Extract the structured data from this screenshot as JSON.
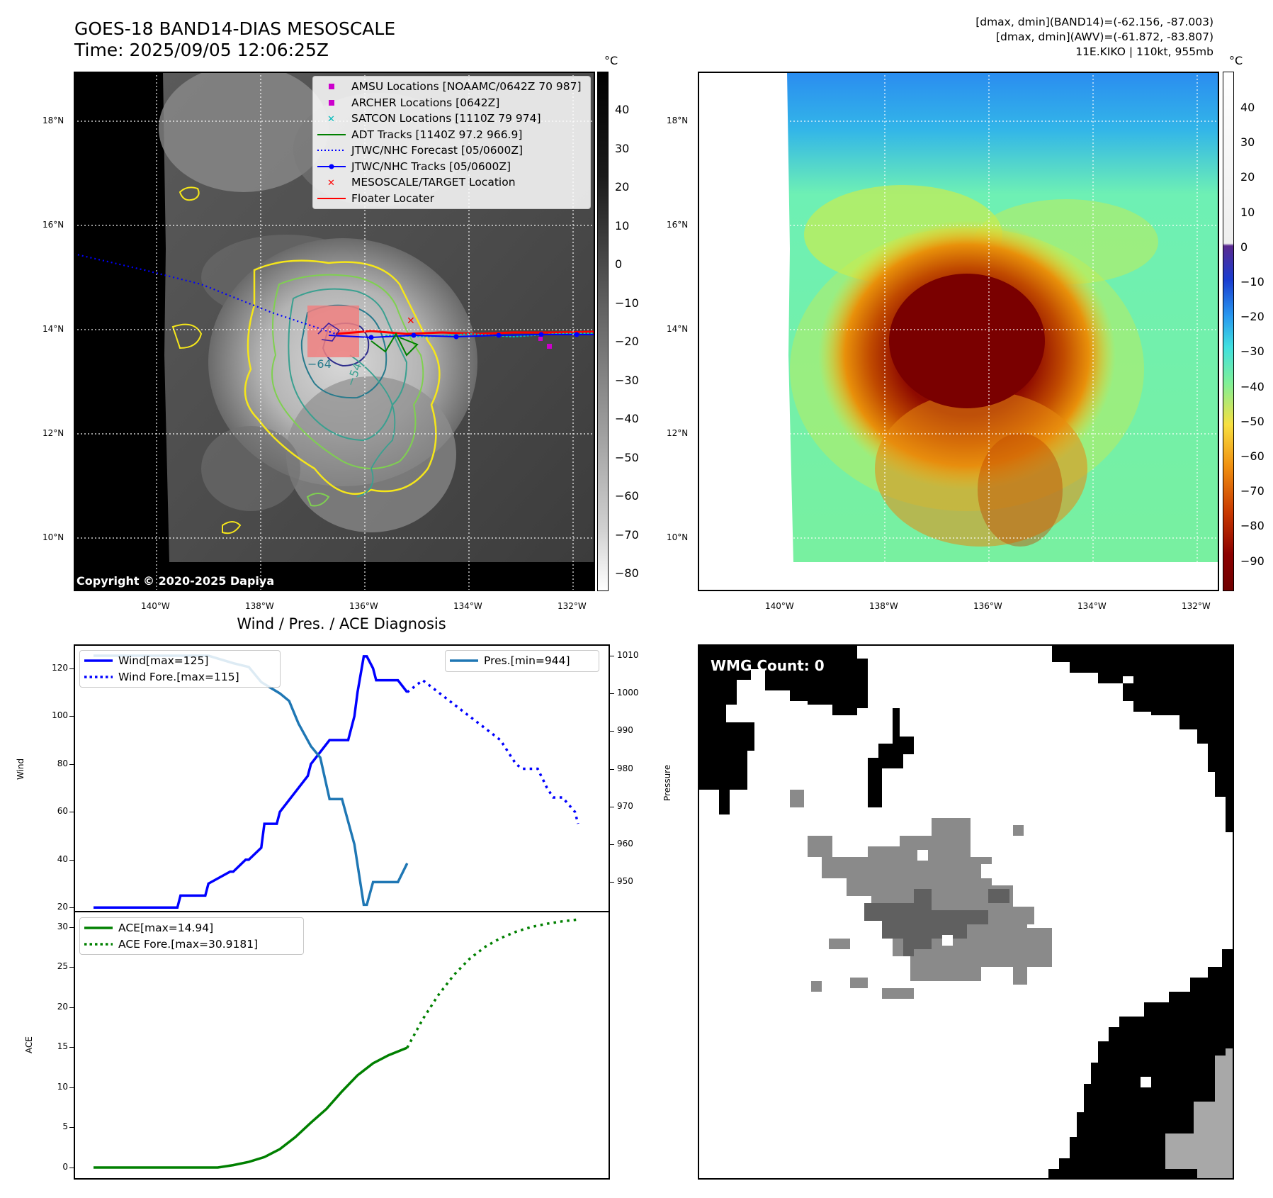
{
  "header": {
    "title_line1": "GOES-18 BAND14-DIAS MESOSCALE",
    "title_line2": "Time: 2025/09/05 12:06:25Z",
    "meta_line1": "[dmax, dmin](BAND14)=(-62.156, -87.003)",
    "meta_line2": "[dmax, dmin](AWV)=(-61.872, -83.807)",
    "meta_line3": "11E.KIKO | 110kt, 955mb"
  },
  "map": {
    "lat_ticks": [
      "18°N",
      "16°N",
      "14°N",
      "12°N",
      "10°N"
    ],
    "lon_ticks": [
      "140°W",
      "138°W",
      "136°W",
      "134°W",
      "132°W"
    ],
    "contour_labels": [
      "−64",
      "−54"
    ],
    "copyright": "Copyright © 2020-2025 Dapiya"
  },
  "colorbar_left": {
    "unit": "°C",
    "ticks": [
      "40",
      "30",
      "20",
      "10",
      "0",
      "−10",
      "−20",
      "−30",
      "−40",
      "−50",
      "−60",
      "−70",
      "−80"
    ]
  },
  "colorbar_right": {
    "unit": "°C",
    "ticks": [
      "40",
      "30",
      "20",
      "10",
      "0",
      "−10",
      "−20",
      "−30",
      "−40",
      "−50",
      "−60",
      "−70",
      "−80",
      "−90"
    ]
  },
  "legend_map": {
    "items": [
      {
        "label": "AMSU Locations [NOAAMC/0642Z 70 987]",
        "color": "#cc00cc",
        "symbol": "square"
      },
      {
        "label": "ARCHER Locations [0642Z]",
        "color": "#cc00cc",
        "symbol": "square"
      },
      {
        "label": "SATCON Locations [1110Z 79 974]",
        "color": "#00bbbb",
        "symbol": "x"
      },
      {
        "label": "ADT Tracks [1140Z 97.2 966.9]",
        "color": "#008000",
        "symbol": "line"
      },
      {
        "label": "JTWC/NHC Forecast [05/0600Z]",
        "color": "#0000ff",
        "symbol": "dotted"
      },
      {
        "label": "JTWC/NHC Tracks [05/0600Z]",
        "color": "#0000ff",
        "symbol": "line-dot"
      },
      {
        "label": "MESOSCALE/TARGET Location",
        "color": "#ff0000",
        "symbol": "x"
      },
      {
        "label": "Floater Locater",
        "color": "#ff0000",
        "symbol": "line"
      }
    ]
  },
  "wind_panel": {
    "title": "Wind / Pres. / ACE Diagnosis",
    "ylabel_left": "Wind",
    "ylabel_right": "Pressure",
    "legend_wind": "Wind[max=125]",
    "legend_wind_fore": "Wind Fore.[max=115]",
    "legend_pres": "Pres.[min=944]",
    "colors": {
      "wind": "#0000ff",
      "pressure": "#1f77b4"
    }
  },
  "ace_panel": {
    "ylabel": "ACE",
    "legend_ace": "ACE[max=14.94]",
    "legend_ace_fore": "ACE Fore.[max=30.9181]",
    "color": "#008000"
  },
  "wmg_panel": {
    "label": "WMG Count: 0"
  },
  "chart_data": [
    {
      "type": "line",
      "title": "Wind / Pres. / ACE Diagnosis",
      "ylabel": "Wind",
      "ylim": [
        18,
        130
      ],
      "yticks": [
        20,
        40,
        60,
        80,
        100,
        120
      ],
      "y2label": "Pressure",
      "y2lim": [
        942,
        1013
      ],
      "y2ticks": [
        950,
        960,
        970,
        980,
        990,
        1000,
        1010
      ],
      "series": [
        {
          "name": "Wind[max=125]",
          "axis": "left",
          "style": "solid",
          "color": "#0000ff",
          "x": [
            0,
            27,
            28,
            36,
            37,
            44,
            45,
            49,
            50,
            54,
            55,
            59,
            60,
            69,
            70,
            76,
            81,
            82,
            84,
            85,
            87,
            88,
            90,
            91,
            95,
            98,
            101
          ],
          "y": [
            20,
            20,
            25,
            25,
            30,
            35,
            35,
            40,
            40,
            45,
            55,
            55,
            60,
            75,
            80,
            90,
            90,
            90,
            100,
            110,
            125,
            125,
            120,
            115,
            115,
            115,
            110
          ]
        },
        {
          "name": "Wind Fore.[max=115]",
          "axis": "left",
          "style": "dotted",
          "color": "#0000ff",
          "x": [
            101,
            106,
            111,
            116,
            121,
            126,
            131,
            136,
            138,
            143,
            146,
            148,
            151,
            155,
            156
          ],
          "y": [
            110,
            115,
            110,
            105,
            100,
            95,
            90,
            80,
            78,
            78,
            70,
            66,
            66,
            60,
            55
          ]
        },
        {
          "name": "Pres.[min=944]",
          "axis": "right",
          "style": "solid",
          "color": "#1f77b4",
          "x": [
            0,
            28,
            37,
            45,
            50,
            54,
            58,
            60,
            63,
            66,
            70,
            73,
            76,
            80,
            84,
            87,
            88,
            90,
            91,
            95,
            98,
            101
          ],
          "y": [
            1010,
            1010,
            1010,
            1008,
            1007,
            1003,
            1001,
            1000,
            998,
            992,
            986,
            983,
            972,
            972,
            960,
            944,
            944,
            950,
            950,
            950,
            950,
            955
          ]
        }
      ]
    },
    {
      "type": "line",
      "ylabel": "ACE",
      "ylim": [
        -1.5,
        32
      ],
      "yticks": [
        0,
        5,
        10,
        15,
        20,
        25,
        30
      ],
      "series": [
        {
          "name": "ACE[max=14.94]",
          "style": "solid",
          "color": "#008000",
          "x": [
            0,
            10,
            20,
            30,
            40,
            45,
            50,
            55,
            60,
            65,
            70,
            75,
            80,
            85,
            90,
            95,
            101
          ],
          "y": [
            0,
            0,
            0,
            0,
            0,
            0.3,
            0.7,
            1.3,
            2.3,
            3.8,
            5.6,
            7.3,
            9.5,
            11.5,
            13,
            14,
            14.94
          ]
        },
        {
          "name": "ACE Fore.[max=30.9181]",
          "style": "dotted",
          "color": "#008000",
          "x": [
            101,
            106,
            111,
            116,
            121,
            126,
            131,
            136,
            141,
            146,
            151,
            156
          ],
          "y": [
            14.94,
            18.5,
            21.5,
            24,
            26,
            27.5,
            28.6,
            29.4,
            30,
            30.4,
            30.7,
            30.92
          ]
        }
      ]
    }
  ]
}
